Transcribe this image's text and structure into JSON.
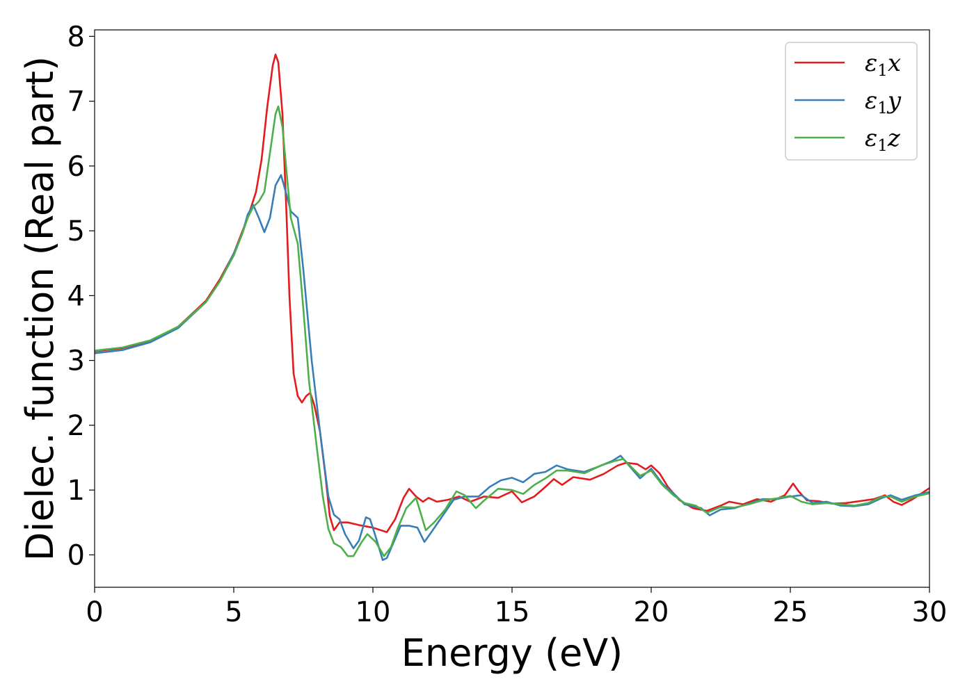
{
  "chart_data": {
    "type": "line",
    "title": "",
    "xlabel": "Energy (eV)",
    "ylabel": "Dielec. function (Real part)",
    "xlim": [
      0,
      30
    ],
    "ylim": [
      -0.5,
      8.1
    ],
    "xticks": [
      0,
      5,
      10,
      15,
      20,
      25,
      30
    ],
    "yticks": [
      0,
      1,
      2,
      3,
      4,
      5,
      6,
      7,
      8
    ],
    "grid": false,
    "legend": {
      "placement": "top-right",
      "entries": [
        {
          "symbol": "ε",
          "sub": "1",
          "axis": "x"
        },
        {
          "symbol": "ε",
          "sub": "1",
          "axis": "y"
        },
        {
          "symbol": "ε",
          "sub": "1",
          "axis": "z"
        }
      ]
    },
    "series": [
      {
        "color": "#e41a1c",
        "points": [
          [
            0,
            3.14
          ],
          [
            1,
            3.19
          ],
          [
            2,
            3.3
          ],
          [
            3,
            3.52
          ],
          [
            4,
            3.92
          ],
          [
            4.5,
            4.25
          ],
          [
            5,
            4.65
          ],
          [
            5.5,
            5.2
          ],
          [
            5.8,
            5.6
          ],
          [
            6,
            6.1
          ],
          [
            6.2,
            6.9
          ],
          [
            6.4,
            7.55
          ],
          [
            6.5,
            7.72
          ],
          [
            6.6,
            7.6
          ],
          [
            6.75,
            6.8
          ],
          [
            6.9,
            5.2
          ],
          [
            7,
            4.0
          ],
          [
            7.15,
            2.8
          ],
          [
            7.3,
            2.45
          ],
          [
            7.45,
            2.35
          ],
          [
            7.6,
            2.45
          ],
          [
            7.75,
            2.5
          ],
          [
            7.9,
            2.3
          ],
          [
            8.1,
            1.9
          ],
          [
            8.3,
            1.2
          ],
          [
            8.45,
            0.6
          ],
          [
            8.6,
            0.38
          ],
          [
            8.8,
            0.5
          ],
          [
            9.1,
            0.5
          ],
          [
            9.5,
            0.46
          ],
          [
            10,
            0.42
          ],
          [
            10.5,
            0.35
          ],
          [
            10.8,
            0.55
          ],
          [
            11.1,
            0.88
          ],
          [
            11.3,
            1.02
          ],
          [
            11.55,
            0.9
          ],
          [
            11.8,
            0.82
          ],
          [
            12,
            0.88
          ],
          [
            12.3,
            0.82
          ],
          [
            12.7,
            0.85
          ],
          [
            13.1,
            0.9
          ],
          [
            13.5,
            0.82
          ],
          [
            14,
            0.9
          ],
          [
            14.5,
            0.88
          ],
          [
            15,
            0.98
          ],
          [
            15.35,
            0.81
          ],
          [
            15.8,
            0.9
          ],
          [
            16.2,
            1.05
          ],
          [
            16.5,
            1.17
          ],
          [
            16.8,
            1.08
          ],
          [
            17.2,
            1.2
          ],
          [
            17.8,
            1.16
          ],
          [
            18.3,
            1.25
          ],
          [
            18.8,
            1.38
          ],
          [
            19.1,
            1.42
          ],
          [
            19.5,
            1.4
          ],
          [
            19.8,
            1.32
          ],
          [
            20,
            1.38
          ],
          [
            20.3,
            1.26
          ],
          [
            20.6,
            1.05
          ],
          [
            21,
            0.85
          ],
          [
            21.5,
            0.72
          ],
          [
            22,
            0.68
          ],
          [
            22.5,
            0.76
          ],
          [
            22.8,
            0.82
          ],
          [
            23.3,
            0.78
          ],
          [
            23.8,
            0.86
          ],
          [
            24.3,
            0.82
          ],
          [
            24.8,
            0.92
          ],
          [
            25.1,
            1.1
          ],
          [
            25.3,
            0.98
          ],
          [
            25.6,
            0.84
          ],
          [
            26,
            0.83
          ],
          [
            26.5,
            0.79
          ],
          [
            27,
            0.8
          ],
          [
            27.5,
            0.83
          ],
          [
            28,
            0.86
          ],
          [
            28.4,
            0.92
          ],
          [
            28.7,
            0.82
          ],
          [
            29,
            0.77
          ],
          [
            29.4,
            0.86
          ],
          [
            30,
            1.03
          ]
        ]
      },
      {
        "color": "#377eb8",
        "points": [
          [
            0,
            3.11
          ],
          [
            1,
            3.16
          ],
          [
            2,
            3.28
          ],
          [
            3,
            3.5
          ],
          [
            4,
            3.9
          ],
          [
            4.5,
            4.22
          ],
          [
            5,
            4.65
          ],
          [
            5.3,
            4.95
          ],
          [
            5.5,
            5.25
          ],
          [
            5.7,
            5.4
          ],
          [
            5.9,
            5.2
          ],
          [
            6.1,
            4.98
          ],
          [
            6.3,
            5.2
          ],
          [
            6.5,
            5.7
          ],
          [
            6.7,
            5.86
          ],
          [
            6.9,
            5.55
          ],
          [
            7.05,
            5.3
          ],
          [
            7.3,
            5.2
          ],
          [
            7.5,
            4.4
          ],
          [
            7.8,
            3.0
          ],
          [
            8.1,
            1.9
          ],
          [
            8.4,
            0.9
          ],
          [
            8.6,
            0.62
          ],
          [
            8.8,
            0.55
          ],
          [
            9,
            0.32
          ],
          [
            9.3,
            0.1
          ],
          [
            9.5,
            0.22
          ],
          [
            9.75,
            0.58
          ],
          [
            9.9,
            0.55
          ],
          [
            10.1,
            0.28
          ],
          [
            10.35,
            -0.08
          ],
          [
            10.5,
            -0.05
          ],
          [
            10.75,
            0.2
          ],
          [
            11,
            0.45
          ],
          [
            11.3,
            0.45
          ],
          [
            11.6,
            0.42
          ],
          [
            11.85,
            0.2
          ],
          [
            12.1,
            0.35
          ],
          [
            12.5,
            0.6
          ],
          [
            12.9,
            0.85
          ],
          [
            13.3,
            0.9
          ],
          [
            13.8,
            0.9
          ],
          [
            14.2,
            1.05
          ],
          [
            14.6,
            1.15
          ],
          [
            15,
            1.19
          ],
          [
            15.4,
            1.12
          ],
          [
            15.8,
            1.25
          ],
          [
            16.2,
            1.28
          ],
          [
            16.6,
            1.38
          ],
          [
            17,
            1.32
          ],
          [
            17.6,
            1.28
          ],
          [
            18.1,
            1.36
          ],
          [
            18.6,
            1.45
          ],
          [
            18.9,
            1.53
          ],
          [
            19.2,
            1.38
          ],
          [
            19.6,
            1.18
          ],
          [
            20,
            1.33
          ],
          [
            20.4,
            1.1
          ],
          [
            20.8,
            0.95
          ],
          [
            21.2,
            0.78
          ],
          [
            21.8,
            0.72
          ],
          [
            22.1,
            0.61
          ],
          [
            22.5,
            0.7
          ],
          [
            23,
            0.72
          ],
          [
            23.5,
            0.79
          ],
          [
            24,
            0.86
          ],
          [
            24.5,
            0.86
          ],
          [
            25,
            0.9
          ],
          [
            25.4,
            0.92
          ],
          [
            25.8,
            0.8
          ],
          [
            26.3,
            0.82
          ],
          [
            26.8,
            0.76
          ],
          [
            27.3,
            0.75
          ],
          [
            27.8,
            0.78
          ],
          [
            28.3,
            0.88
          ],
          [
            28.6,
            0.92
          ],
          [
            29,
            0.85
          ],
          [
            29.5,
            0.92
          ],
          [
            30,
            0.97
          ]
        ]
      },
      {
        "color": "#4daf4a",
        "points": [
          [
            0,
            3.15
          ],
          [
            1,
            3.2
          ],
          [
            2,
            3.31
          ],
          [
            3,
            3.52
          ],
          [
            4,
            3.9
          ],
          [
            4.5,
            4.22
          ],
          [
            5,
            4.62
          ],
          [
            5.3,
            4.95
          ],
          [
            5.5,
            5.2
          ],
          [
            5.7,
            5.37
          ],
          [
            5.9,
            5.45
          ],
          [
            6.1,
            5.6
          ],
          [
            6.3,
            6.2
          ],
          [
            6.5,
            6.8
          ],
          [
            6.6,
            6.92
          ],
          [
            6.75,
            6.6
          ],
          [
            6.9,
            5.9
          ],
          [
            7.05,
            5.2
          ],
          [
            7.3,
            4.8
          ],
          [
            7.5,
            3.8
          ],
          [
            7.7,
            2.7
          ],
          [
            8,
            1.6
          ],
          [
            8.2,
            0.9
          ],
          [
            8.4,
            0.4
          ],
          [
            8.6,
            0.18
          ],
          [
            8.85,
            0.12
          ],
          [
            9.1,
            -0.02
          ],
          [
            9.3,
            -0.02
          ],
          [
            9.6,
            0.2
          ],
          [
            9.8,
            0.32
          ],
          [
            10.1,
            0.2
          ],
          [
            10.4,
            -0.02
          ],
          [
            10.65,
            0.12
          ],
          [
            10.9,
            0.42
          ],
          [
            11.2,
            0.72
          ],
          [
            11.55,
            0.88
          ],
          [
            11.9,
            0.38
          ],
          [
            12.2,
            0.5
          ],
          [
            12.6,
            0.7
          ],
          [
            13,
            0.98
          ],
          [
            13.3,
            0.92
          ],
          [
            13.7,
            0.72
          ],
          [
            14,
            0.84
          ],
          [
            14.5,
            1.02
          ],
          [
            15,
            1.0
          ],
          [
            15.4,
            0.94
          ],
          [
            15.8,
            1.08
          ],
          [
            16.2,
            1.18
          ],
          [
            16.6,
            1.3
          ],
          [
            17,
            1.3
          ],
          [
            17.6,
            1.26
          ],
          [
            18.2,
            1.38
          ],
          [
            18.7,
            1.45
          ],
          [
            19,
            1.48
          ],
          [
            19.3,
            1.35
          ],
          [
            19.6,
            1.22
          ],
          [
            20,
            1.3
          ],
          [
            20.4,
            1.08
          ],
          [
            20.8,
            0.92
          ],
          [
            21.2,
            0.8
          ],
          [
            21.6,
            0.76
          ],
          [
            22,
            0.65
          ],
          [
            22.5,
            0.74
          ],
          [
            23,
            0.73
          ],
          [
            23.5,
            0.78
          ],
          [
            24,
            0.84
          ],
          [
            24.5,
            0.87
          ],
          [
            25,
            0.91
          ],
          [
            25.4,
            0.82
          ],
          [
            25.8,
            0.78
          ],
          [
            26.3,
            0.8
          ],
          [
            26.8,
            0.78
          ],
          [
            27.3,
            0.76
          ],
          [
            27.8,
            0.8
          ],
          [
            28.3,
            0.9
          ],
          [
            28.6,
            0.9
          ],
          [
            29,
            0.82
          ],
          [
            29.5,
            0.9
          ],
          [
            30,
            0.95
          ]
        ]
      }
    ]
  }
}
